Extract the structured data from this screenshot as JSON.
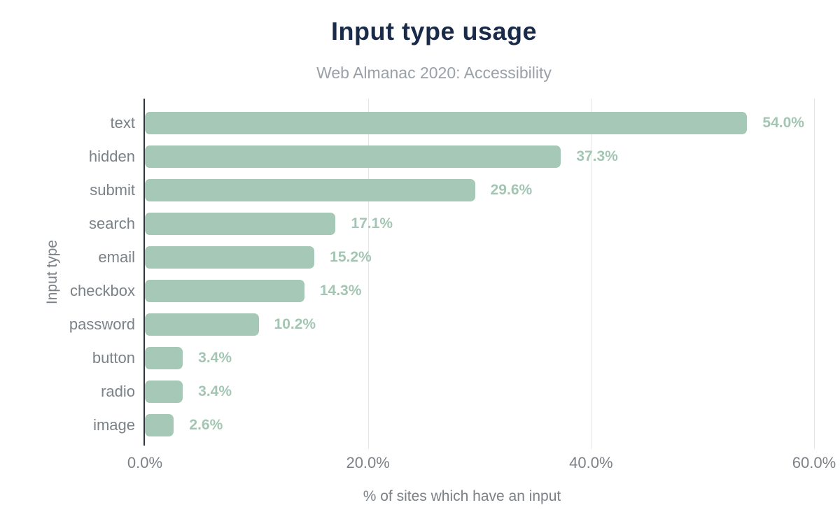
{
  "chart_data": {
    "type": "bar",
    "orientation": "horizontal",
    "title": "Input type usage",
    "subtitle": "Web Almanac 2020: Accessibility",
    "xlabel": "% of sites which have an input",
    "ylabel": "Input type",
    "categories": [
      "text",
      "hidden",
      "submit",
      "search",
      "email",
      "checkbox",
      "password",
      "button",
      "radio",
      "image"
    ],
    "values": [
      54.0,
      37.3,
      29.6,
      17.1,
      15.2,
      14.3,
      10.2,
      3.4,
      3.4,
      2.6
    ],
    "value_labels": [
      "54.0%",
      "37.3%",
      "29.6%",
      "17.1%",
      "15.2%",
      "14.3%",
      "10.2%",
      "3.4%",
      "3.4%",
      "2.6%"
    ],
    "xlim": [
      0,
      60
    ],
    "x_tick_values": [
      0,
      20,
      40,
      60
    ],
    "x_tick_labels": [
      "0.0%",
      "20.0%",
      "40.0%",
      "60.0%"
    ],
    "grid": "vertical-only",
    "legend": "none",
    "colors": {
      "bar": "#a5c8b7",
      "value_label": "#a3c6b4",
      "title": "#1a2b49",
      "subtitle": "#9aa1a7",
      "axis_text": "#7b8186",
      "axis_line": "#2f353a",
      "gridline": "#e7e7e7",
      "background": "#ffffff"
    }
  }
}
